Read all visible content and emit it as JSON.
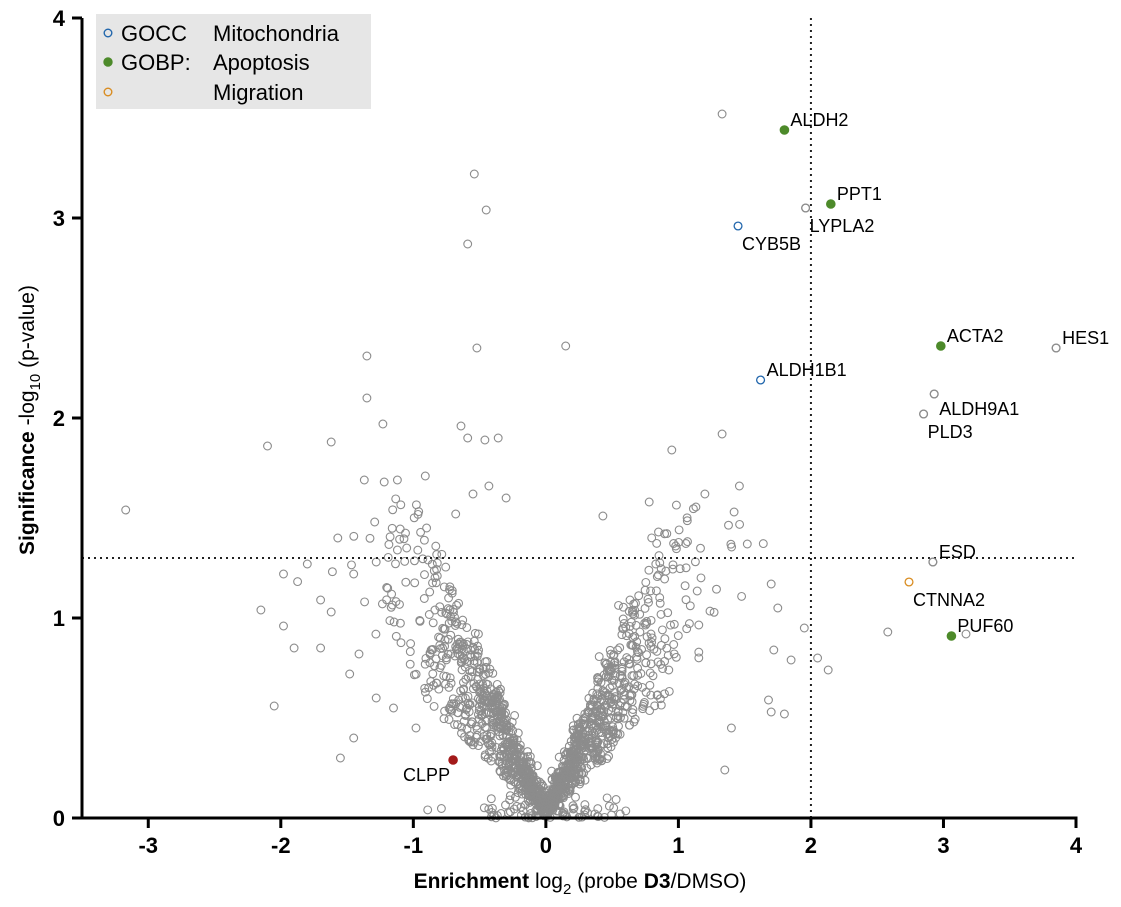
{
  "chart_data": {
    "type": "scatter",
    "title": "",
    "xlabel": {
      "bold": "Enrichment",
      "pre": " log",
      "sub": "2",
      "mid": " (probe ",
      "bold2": "D3",
      "post": "/DMSO)"
    },
    "ylabel": {
      "bold": "Significance",
      "pre": " -log",
      "sub": "10",
      "post": " (p-value)"
    },
    "xlim": [
      -3.5,
      4
    ],
    "ylim": [
      0,
      4
    ],
    "xticks": [
      -3,
      -2,
      -1,
      0,
      1,
      2,
      3,
      4
    ],
    "yticks": [
      0,
      1,
      2,
      3,
      4
    ],
    "xtick_labels": [
      "-3",
      "-2",
      "-1",
      "0",
      "1",
      "2",
      "3",
      "4"
    ],
    "ytick_labels": [
      "0",
      "1",
      "2",
      "3",
      "4"
    ],
    "thresholds": {
      "x": 2,
      "y": 1.3
    },
    "grid": false,
    "legend": {
      "placement": "top-left",
      "entries": [
        {
          "key": "mito",
          "prefix": "GOCC",
          "label": "Mitochondria",
          "color": "#2166ac",
          "filled": false
        },
        {
          "key": "apop",
          "prefix": "GOBP:",
          "label": "Apoptosis",
          "color": "#4d8a2a",
          "filled": true
        },
        {
          "key": "migr",
          "prefix": "",
          "label": "Migration",
          "color": "#d98c20",
          "filled": false
        }
      ]
    },
    "colors": {
      "background_points": "#8c8c8c",
      "highlight": "#a31a1a",
      "legend_box": "#e6e6e6"
    },
    "background_sample_seed": 7,
    "background_points": [
      [
        -3.17,
        1.54
      ],
      [
        -2.1,
        1.86
      ],
      [
        -1.62,
        1.88
      ],
      [
        -1.35,
        2.31
      ],
      [
        -1.35,
        2.1
      ],
      [
        -1.23,
        1.97
      ],
      [
        -1.37,
        1.69
      ],
      [
        -1.22,
        1.68
      ],
      [
        -1.12,
        1.69
      ],
      [
        -0.91,
        1.71
      ],
      [
        -0.54,
        3.22
      ],
      [
        -0.45,
        3.04
      ],
      [
        -0.59,
        2.87
      ],
      [
        -0.52,
        2.35
      ],
      [
        -0.64,
        1.96
      ],
      [
        -0.59,
        1.9
      ],
      [
        -0.46,
        1.89
      ],
      [
        -0.36,
        1.9
      ],
      [
        0.15,
        2.36
      ],
      [
        1.33,
        3.52
      ],
      [
        1.33,
        1.92
      ],
      [
        0.95,
        1.84
      ],
      [
        1.2,
        1.62
      ],
      [
        1.46,
        1.66
      ],
      [
        1.96,
        3.05
      ],
      [
        2.85,
        2.02
      ],
      [
        2.93,
        2.12
      ],
      [
        3.85,
        2.35
      ],
      [
        2.92,
        1.28
      ],
      [
        2.58,
        0.93
      ],
      [
        3.17,
        0.92
      ],
      [
        -2.15,
        1.04
      ],
      [
        -2.05,
        0.56
      ],
      [
        -1.55,
        0.3
      ],
      [
        -1.05,
        1.35
      ],
      [
        -0.9,
        1.45
      ],
      [
        -0.68,
        1.52
      ],
      [
        -0.55,
        1.62
      ],
      [
        -0.43,
        1.66
      ],
      [
        -0.3,
        1.6
      ],
      [
        0.43,
        1.51
      ],
      [
        0.78,
        1.58
      ],
      [
        0.85,
        1.43
      ],
      [
        0.98,
        1.36
      ],
      [
        1.42,
        1.53
      ],
      [
        1.52,
        1.37
      ],
      [
        1.7,
        1.17
      ],
      [
        1.75,
        1.05
      ],
      [
        1.72,
        0.84
      ],
      [
        1.85,
        0.79
      ],
      [
        1.95,
        0.95
      ],
      [
        2.05,
        0.8
      ],
      [
        2.13,
        0.74
      ],
      [
        1.68,
        0.59
      ],
      [
        1.8,
        0.52
      ],
      [
        1.7,
        0.53
      ],
      [
        1.4,
        0.45
      ],
      [
        1.35,
        0.24
      ],
      [
        -1.98,
        1.22
      ],
      [
        -1.8,
        1.27
      ],
      [
        -1.7,
        1.09
      ],
      [
        -1.62,
        1.03
      ],
      [
        -1.57,
        1.4
      ],
      [
        -1.45,
        1.22
      ],
      [
        -1.28,
        1.28
      ],
      [
        -1.12,
        1.34
      ],
      [
        -1.7,
        0.85
      ],
      [
        -1.9,
        0.85
      ],
      [
        -1.98,
        0.96
      ],
      [
        -1.41,
        0.82
      ],
      [
        -1.48,
        0.72
      ],
      [
        -1.28,
        0.6
      ],
      [
        -1.45,
        0.4
      ],
      [
        -1.15,
        0.55
      ],
      [
        -0.98,
        0.45
      ]
    ],
    "labeled_points": [
      {
        "x": 1.8,
        "y": 3.44,
        "name": "ALDH2",
        "group": "apop",
        "anchor": "right-up"
      },
      {
        "x": 2.15,
        "y": 3.07,
        "name": "PPT1",
        "group": "apop",
        "anchor": "right-up"
      },
      {
        "x": 1.96,
        "y": 3.05,
        "name": "LYPLA2",
        "group": "none",
        "anchor": "below"
      },
      {
        "x": 1.45,
        "y": 2.96,
        "name": "CYB5B",
        "group": "mito",
        "anchor": "below"
      },
      {
        "x": 2.98,
        "y": 2.36,
        "name": "ACTA2",
        "group": "apop",
        "anchor": "right-up"
      },
      {
        "x": 3.85,
        "y": 2.35,
        "name": "HES1",
        "group": "none",
        "anchor": "right-up"
      },
      {
        "x": 1.62,
        "y": 2.19,
        "name": "ALDH1B1",
        "group": "mito",
        "anchor": "right-up"
      },
      {
        "x": 2.93,
        "y": 2.12,
        "name": "ALDH9A1",
        "group": "none",
        "anchor": "right-below"
      },
      {
        "x": 2.85,
        "y": 2.02,
        "name": "PLD3",
        "group": "none",
        "anchor": "below"
      },
      {
        "x": 2.92,
        "y": 1.28,
        "name": "ESD",
        "group": "none",
        "anchor": "right-up"
      },
      {
        "x": 2.74,
        "y": 1.18,
        "name": "CTNNA2",
        "group": "migr",
        "anchor": "below"
      },
      {
        "x": 3.06,
        "y": 0.91,
        "name": "PUF60",
        "group": "apop",
        "anchor": "right-up"
      },
      {
        "x": -0.7,
        "y": 0.29,
        "name": "CLPP",
        "group": "highlight",
        "anchor": "left-below"
      }
    ]
  }
}
